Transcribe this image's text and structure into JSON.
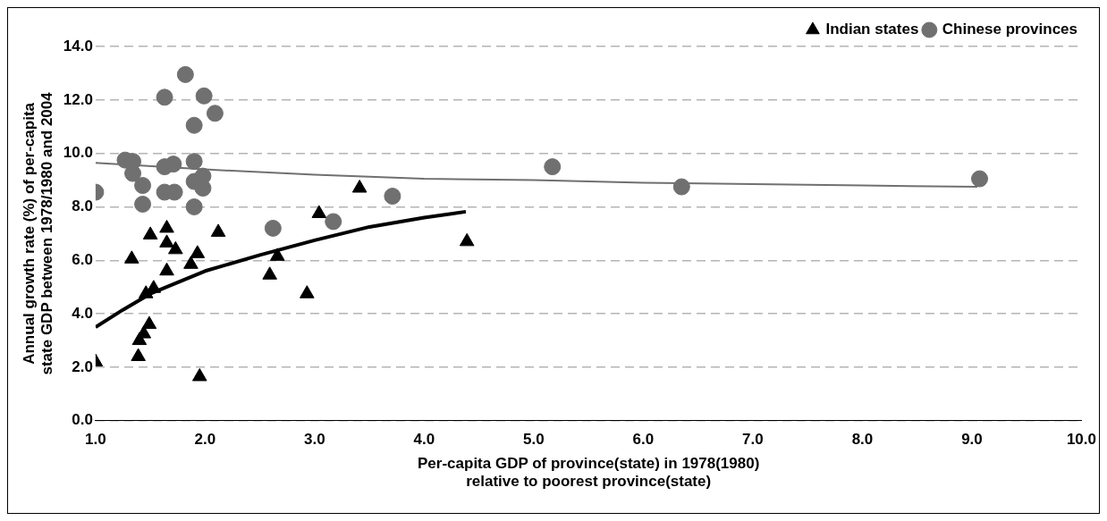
{
  "chart_data": {
    "type": "scatter",
    "xlabel": "Per-capita GDP of province(state) in 1978(1980)\nrelative to poorest province(state)",
    "ylabel": "Annual growth rate (%) of per-capita\nstate GDP between 1978/1980 and 2004",
    "xlim": [
      1,
      10
    ],
    "ylim": [
      0,
      14
    ],
    "xticks": [
      {
        "value": 1,
        "label": "1.0"
      },
      {
        "value": 2,
        "label": "2.0"
      },
      {
        "value": 3,
        "label": "3.0"
      },
      {
        "value": 4,
        "label": "4.0"
      },
      {
        "value": 5,
        "label": "5.0"
      },
      {
        "value": 6,
        "label": "6.0"
      },
      {
        "value": 7,
        "label": "7.0"
      },
      {
        "value": 8,
        "label": "8.0"
      },
      {
        "value": 9,
        "label": "9.0"
      },
      {
        "value": 10,
        "label": "10.0"
      }
    ],
    "yticks": [
      {
        "value": 0,
        "label": "0.0"
      },
      {
        "value": 2,
        "label": "2.0"
      },
      {
        "value": 4,
        "label": "4.0"
      },
      {
        "value": 6,
        "label": "6.0"
      },
      {
        "value": 8,
        "label": "8.0"
      },
      {
        "value": 10,
        "label": "10.0"
      },
      {
        "value": 12,
        "label": "12.0"
      },
      {
        "value": 14,
        "label": "14.0"
      }
    ],
    "grid": "y",
    "legend": "top right",
    "series": [
      {
        "name": "Indian states",
        "color": "#000000",
        "marker": "triangle",
        "x": [
          1.0,
          1.33,
          1.39,
          1.4,
          1.44,
          1.46,
          1.49,
          1.5,
          1.53,
          1.65,
          1.65,
          1.65,
          1.73,
          1.87,
          1.93,
          1.95,
          2.12,
          2.59,
          2.66,
          2.93,
          3.04,
          3.41,
          4.39
        ],
        "values": [
          2.2,
          6.05,
          2.4,
          3.0,
          3.25,
          4.75,
          3.6,
          6.95,
          4.95,
          6.65,
          7.2,
          5.6,
          6.4,
          5.85,
          6.25,
          1.65,
          7.05,
          5.45,
          6.15,
          4.75,
          7.75,
          8.7,
          6.7
        ]
      },
      {
        "name": "Chinese provinces",
        "color": "#707070",
        "marker": "circle",
        "x": [
          1.0,
          1.27,
          1.34,
          1.34,
          1.43,
          1.43,
          1.63,
          1.63,
          1.63,
          1.71,
          1.72,
          1.82,
          1.9,
          1.9,
          1.9,
          1.9,
          1.98,
          1.98,
          1.99,
          2.09,
          2.62,
          3.17,
          3.71,
          5.17,
          6.35,
          9.07
        ],
        "values": [
          8.55,
          9.75,
          9.7,
          9.25,
          8.8,
          8.1,
          12.1,
          9.5,
          8.55,
          9.6,
          8.55,
          12.95,
          11.05,
          9.7,
          8.95,
          8.0,
          9.15,
          8.7,
          12.15,
          11.5,
          7.2,
          7.45,
          8.4,
          9.5,
          8.75,
          9.05
        ]
      },
      {
        "type": "line",
        "color": "#000000",
        "marker": "none",
        "x": [
          1.0,
          1.25,
          1.5,
          2.0,
          2.5,
          3.0,
          3.5,
          4.0,
          4.38
        ],
        "values": [
          3.5,
          4.15,
          4.75,
          5.6,
          6.2,
          6.75,
          7.25,
          7.6,
          7.82
        ]
      },
      {
        "type": "line",
        "color": "#707070",
        "marker": "none",
        "x": [
          1.0,
          2.0,
          3.0,
          4.0,
          5.0,
          6.0,
          7.0,
          8.0,
          9.05
        ],
        "values": [
          9.65,
          9.4,
          9.2,
          9.05,
          9.0,
          8.9,
          8.85,
          8.8,
          8.75
        ]
      }
    ]
  }
}
